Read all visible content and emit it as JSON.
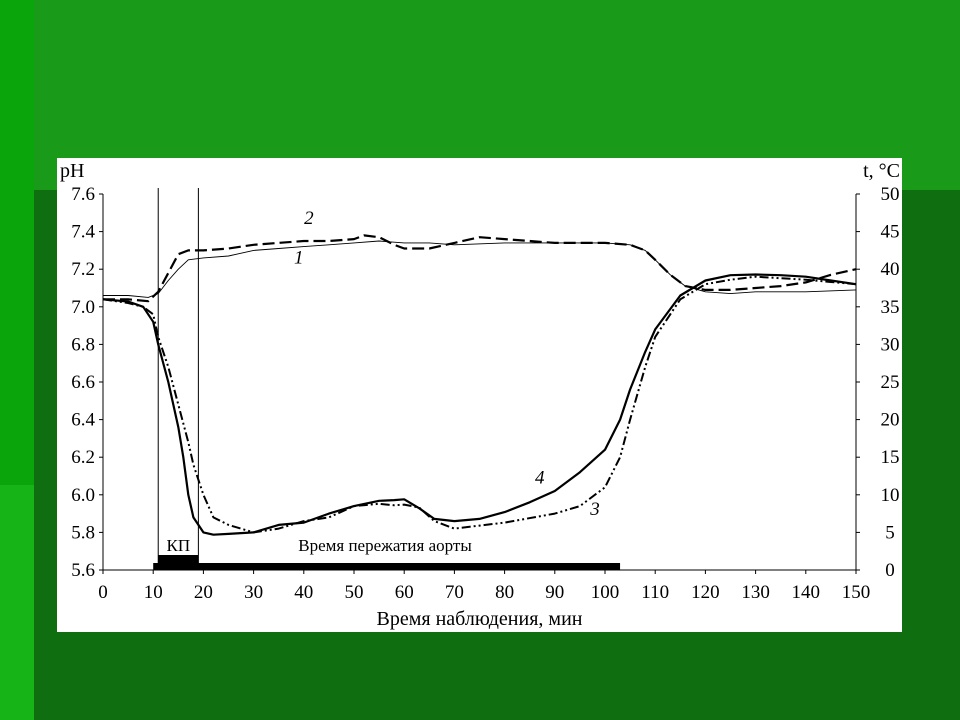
{
  "chart_data": {
    "type": "line",
    "xlabel": "Время наблюдения, мин",
    "ylabel_left": "pH",
    "ylabel_right": "t, °C",
    "xlim": [
      0,
      150
    ],
    "ylim_left": [
      5.6,
      7.6
    ],
    "ylim_right": [
      0,
      50
    ],
    "x_ticks": [
      0,
      10,
      20,
      30,
      40,
      50,
      60,
      70,
      80,
      90,
      100,
      110,
      120,
      130,
      140,
      150
    ],
    "y_ticks_left": [
      "5.6",
      "5.8",
      "6.0",
      "6.2",
      "6.4",
      "6.6",
      "6.8",
      "7.0",
      "7.2",
      "7.4",
      "7.6"
    ],
    "y_ticks_right": [
      0,
      5,
      10,
      15,
      20,
      25,
      30,
      35,
      40,
      45,
      50
    ],
    "vertical_markers": [
      11,
      19
    ],
    "phases": [
      {
        "label": "КП",
        "start": 11,
        "end": 19
      },
      {
        "label": "Время пережатия аорты",
        "start": 19,
        "end": 103
      }
    ],
    "bar_start": 10,
    "series": [
      {
        "name": "1",
        "axis": "left",
        "style": "thin-solid",
        "label_x": 39,
        "label_y": 7.23,
        "x": [
          0,
          5,
          9,
          11,
          13,
          15,
          17,
          20,
          25,
          30,
          35,
          40,
          45,
          50,
          55,
          60,
          65,
          70,
          80,
          90,
          100,
          105,
          108,
          110,
          113,
          116,
          120,
          125,
          130,
          140,
          150
        ],
        "y": [
          7.06,
          7.06,
          7.05,
          7.07,
          7.14,
          7.2,
          7.25,
          7.26,
          7.27,
          7.3,
          7.31,
          7.32,
          7.33,
          7.34,
          7.35,
          7.34,
          7.34,
          7.33,
          7.34,
          7.34,
          7.34,
          7.33,
          7.3,
          7.25,
          7.17,
          7.11,
          7.08,
          7.07,
          7.08,
          7.08,
          7.09
        ]
      },
      {
        "name": "2",
        "axis": "left",
        "style": "thick-dashed",
        "label_x": 41,
        "label_y": 7.44,
        "x": [
          0,
          5,
          9,
          11,
          13,
          15,
          17,
          20,
          25,
          30,
          35,
          40,
          45,
          50,
          52,
          55,
          58,
          60,
          65,
          70,
          75,
          80,
          90,
          100,
          105,
          108,
          110,
          113,
          116,
          120,
          125,
          130,
          135,
          140,
          145,
          150
        ],
        "y": [
          7.04,
          7.04,
          7.03,
          7.08,
          7.18,
          7.28,
          7.3,
          7.3,
          7.31,
          7.33,
          7.34,
          7.35,
          7.35,
          7.36,
          7.38,
          7.37,
          7.33,
          7.31,
          7.31,
          7.34,
          7.37,
          7.36,
          7.34,
          7.34,
          7.33,
          7.3,
          7.25,
          7.17,
          7.11,
          7.09,
          7.09,
          7.1,
          7.11,
          7.13,
          7.17,
          7.2
        ]
      },
      {
        "name": "3",
        "axis": "right",
        "style": "dash-dot-dot",
        "label_x": 98,
        "label_y": 7.3,
        "x": [
          0,
          5,
          8,
          10,
          11,
          13,
          15,
          17,
          18,
          19,
          20,
          22,
          25,
          30,
          35,
          40,
          45,
          50,
          55,
          58,
          60,
          63,
          66,
          70,
          80,
          90,
          95,
          100,
          103,
          105,
          108,
          110,
          115,
          120,
          125,
          130,
          135,
          140,
          145,
          150
        ],
        "y": [
          36,
          35.5,
          35,
          34,
          31,
          27,
          22,
          17,
          14,
          12,
          10,
          7,
          6,
          5,
          5.5,
          6.5,
          7,
          8.5,
          8.8,
          8.6,
          8.7,
          8.3,
          6.5,
          5.5,
          6.3,
          7.5,
          8.5,
          11,
          15,
          20,
          27,
          31,
          36,
          38,
          38.6,
          39,
          38.8,
          38.6,
          38.3,
          38
        ]
      },
      {
        "name": "4",
        "axis": "right",
        "style": "thick-solid",
        "label_x": 87,
        "label_y": 11.5,
        "x": [
          0,
          5,
          8,
          10,
          11,
          13,
          15,
          16,
          17,
          18,
          19,
          20,
          22,
          25,
          30,
          35,
          40,
          45,
          50,
          55,
          58,
          60,
          63,
          66,
          70,
          75,
          80,
          85,
          90,
          95,
          100,
          103,
          105,
          108,
          110,
          115,
          120,
          125,
          130,
          135,
          140,
          145,
          150
        ],
        "y": [
          36,
          35.7,
          35,
          33,
          30,
          25,
          19,
          15,
          10,
          7,
          6,
          5,
          4.7,
          4.8,
          5,
          6,
          6.3,
          7.5,
          8.5,
          9.2,
          9.3,
          9.4,
          8.2,
          6.8,
          6.5,
          6.8,
          7.7,
          9,
          10.5,
          13,
          16,
          20,
          24,
          29,
          32,
          36.5,
          38.5,
          39.2,
          39.3,
          39.2,
          39,
          38.5,
          38
        ]
      }
    ]
  }
}
